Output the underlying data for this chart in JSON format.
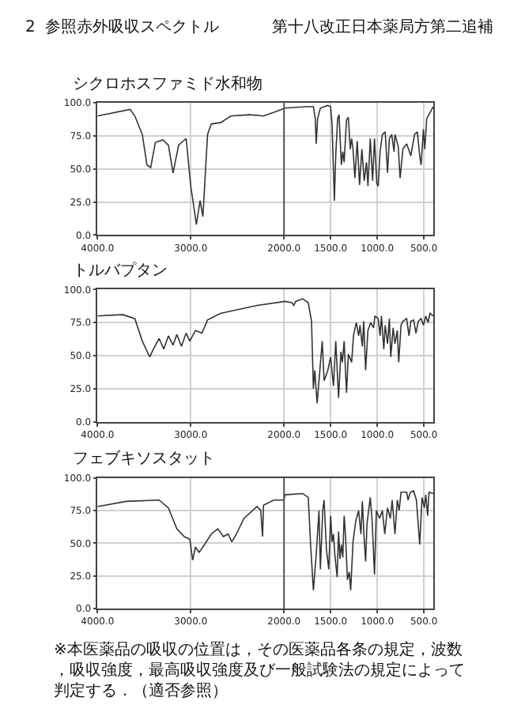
{
  "chart_data": [
    {
      "type": "line",
      "title": "シクロホスファミド水和物",
      "annotations": [
        "2  参照赤外吸収スペクトル",
        "第十八改正日本薬局方第二追補"
      ],
      "xlim": [
        4000,
        400
      ],
      "ylim": [
        0,
        100
      ],
      "xticks": [
        {
          "value": 4000,
          "label": "4000.0"
        },
        {
          "value": 3000,
          "label": "3000.0"
        },
        {
          "value": 2000,
          "label": "2000.0"
        },
        {
          "value": 1500,
          "label": "1500.0"
        },
        {
          "value": 1000,
          "label": "1000.0"
        },
        {
          "value": 500,
          "label": "500.0"
        }
      ],
      "yticks": [
        {
          "value": 0,
          "label": "0.0"
        },
        {
          "value": 25,
          "label": "25.0"
        },
        {
          "value": 50,
          "label": "50.0"
        },
        {
          "value": 75,
          "label": "75.0"
        },
        {
          "value": 100,
          "label": "100.0"
        }
      ],
      "grid": true,
      "ref_lines": [
        {
          "axis": "x",
          "value": 2000,
          "color": "#555555"
        }
      ],
      "series": [
        {
          "color": "#333333",
          "x": [
            4000,
            3650,
            3600,
            3520,
            3470,
            3430,
            3380,
            3300,
            3240,
            3190,
            3130,
            3050,
            3000,
            2940,
            2900,
            2870,
            2820,
            2780,
            2680,
            2570,
            2370,
            2220,
            2100,
            1990,
            1760,
            1685,
            1665,
            1655,
            1640,
            1610,
            1530,
            1500,
            1485,
            1460,
            1445,
            1425,
            1410,
            1385,
            1370,
            1355,
            1330,
            1310,
            1290,
            1275,
            1260,
            1240,
            1215,
            1190,
            1165,
            1140,
            1115,
            1100,
            1075,
            1050,
            1030,
            1005,
            990,
            970,
            945,
            915,
            890,
            870,
            845,
            820,
            810,
            775,
            755,
            725,
            685,
            640,
            600,
            570,
            545,
            530,
            505,
            490,
            470,
            400
          ],
          "values": [
            90,
            95,
            90,
            76,
            53,
            51,
            70,
            72,
            68,
            47,
            68,
            73,
            37,
            8,
            26,
            14,
            76,
            84,
            85,
            90,
            91,
            90,
            93,
            96,
            97,
            97,
            88,
            69,
            88,
            96,
            98,
            97,
            84,
            26,
            61,
            88,
            91,
            53,
            63,
            55,
            87,
            89,
            65,
            73,
            65,
            43,
            71,
            38,
            65,
            41,
            55,
            37,
            73,
            41,
            73,
            39,
            37,
            63,
            76,
            78,
            47,
            73,
            76,
            63,
            76,
            67,
            43,
            65,
            69,
            60,
            76,
            78,
            60,
            53,
            80,
            65,
            88,
            97
          ]
        }
      ]
    },
    {
      "type": "line",
      "title": "トルバプタン",
      "xlim": [
        4000,
        400
      ],
      "ylim": [
        0,
        100
      ],
      "xticks": [
        {
          "value": 4000,
          "label": "4000.0"
        },
        {
          "value": 3000,
          "label": "3000.0"
        },
        {
          "value": 2000,
          "label": "2000.0"
        },
        {
          "value": 1500,
          "label": "1500.0"
        },
        {
          "value": 1000,
          "label": "1000.0"
        },
        {
          "value": 500,
          "label": "500.0"
        }
      ],
      "yticks": [
        {
          "value": 0,
          "label": "0.0"
        },
        {
          "value": 25,
          "label": "25.0"
        },
        {
          "value": 50,
          "label": "50.0"
        },
        {
          "value": 75,
          "label": "75.0"
        },
        {
          "value": 100,
          "label": "100.0"
        }
      ],
      "grid": true,
      "series": [
        {
          "color": "#333333",
          "x": [
            4000,
            3730,
            3600,
            3520,
            3440,
            3400,
            3340,
            3290,
            3240,
            3190,
            3150,
            3100,
            3050,
            3010,
            2950,
            2880,
            2820,
            2680,
            2290,
            1990,
            1915,
            1895,
            1875,
            1800,
            1740,
            1705,
            1685,
            1670,
            1645,
            1625,
            1590,
            1570,
            1530,
            1500,
            1470,
            1445,
            1415,
            1390,
            1375,
            1355,
            1330,
            1310,
            1275,
            1255,
            1225,
            1200,
            1185,
            1160,
            1145,
            1125,
            1100,
            1070,
            1040,
            1025,
            990,
            970,
            955,
            930,
            915,
            890,
            870,
            855,
            830,
            810,
            785,
            770,
            745,
            725,
            685,
            660,
            640,
            610,
            585,
            560,
            530,
            505,
            480,
            455,
            435,
            400
          ],
          "values": [
            80,
            81,
            78,
            61,
            49,
            55,
            63,
            55,
            65,
            58,
            66,
            57,
            67,
            61,
            69,
            67,
            77,
            82,
            88,
            91,
            90,
            88,
            91,
            93,
            90,
            76,
            25,
            39,
            14,
            31,
            61,
            31,
            39,
            49,
            27,
            61,
            18,
            53,
            45,
            61,
            22,
            51,
            45,
            65,
            75,
            65,
            73,
            57,
            76,
            39,
            69,
            75,
            71,
            80,
            78,
            65,
            80,
            55,
            73,
            59,
            78,
            49,
            71,
            59,
            69,
            45,
            73,
            76,
            78,
            65,
            76,
            77,
            67,
            76,
            78,
            73,
            80,
            75,
            82,
            80
          ]
        }
      ]
    },
    {
      "type": "line",
      "title": "フェブキソスタット",
      "annotations": [
        "※本医薬品の吸収の位置は，その医薬品各条の規定，波数，吸収強度，最高吸収強度及び一般試験法の規定によって判定する．（適否参照）"
      ],
      "xlim": [
        4000,
        400
      ],
      "ylim": [
        0,
        100
      ],
      "xticks": [
        {
          "value": 4000,
          "label": "4000.0"
        },
        {
          "value": 3000,
          "label": "3000.0"
        },
        {
          "value": 2000,
          "label": "2000.0"
        },
        {
          "value": 1500,
          "label": "1500.0"
        },
        {
          "value": 1000,
          "label": "1000.0"
        },
        {
          "value": 500,
          "label": "500.0"
        }
      ],
      "yticks": [
        {
          "value": 0,
          "label": "0.0"
        },
        {
          "value": 25,
          "label": "25.0"
        },
        {
          "value": 50,
          "label": "50.0"
        },
        {
          "value": 75,
          "label": "75.0"
        },
        {
          "value": 100,
          "label": "100.0"
        }
      ],
      "grid": true,
      "ref_lines": [
        {
          "axis": "x",
          "value": 2000,
          "color": "#555555"
        }
      ],
      "series": [
        {
          "color": "#333333",
          "x": [
            4000,
            3690,
            3340,
            3240,
            3150,
            3070,
            3010,
            2980,
            2950,
            2910,
            2870,
            2780,
            2710,
            2650,
            2600,
            2560,
            2510,
            2430,
            2290,
            2250,
            2230,
            2220,
            2110,
            2000,
            1990,
            1800,
            1740,
            1715,
            1685,
            1655,
            1625,
            1610,
            1585,
            1570,
            1545,
            1520,
            1500,
            1485,
            1470,
            1455,
            1430,
            1415,
            1400,
            1385,
            1370,
            1355,
            1340,
            1320,
            1300,
            1285,
            1260,
            1230,
            1200,
            1175,
            1160,
            1140,
            1125,
            1110,
            1075,
            1055,
            1030,
            1010,
            975,
            945,
            920,
            890,
            860,
            840,
            810,
            785,
            765,
            745,
            685,
            670,
            645,
            610,
            580,
            545,
            520,
            495,
            480,
            460,
            445,
            400
          ],
          "values": [
            78,
            82,
            83,
            77,
            61,
            55,
            53,
            37,
            47,
            43,
            47,
            57,
            61,
            55,
            57,
            51,
            57,
            69,
            78,
            75,
            55,
            79,
            83,
            83,
            87,
            88,
            85,
            49,
            14,
            41,
            75,
            30,
            75,
            83,
            45,
            30,
            71,
            51,
            57,
            41,
            24,
            59,
            38,
            49,
            39,
            71,
            55,
            22,
            28,
            14,
            51,
            67,
            75,
            57,
            82,
            53,
            36,
            65,
            85,
            67,
            26,
            75,
            69,
            75,
            57,
            77,
            69,
            83,
            57,
            83,
            75,
            89,
            89,
            83,
            89,
            90,
            83,
            49,
            85,
            77,
            87,
            71,
            89,
            88
          ]
        }
      ]
    }
  ]
}
